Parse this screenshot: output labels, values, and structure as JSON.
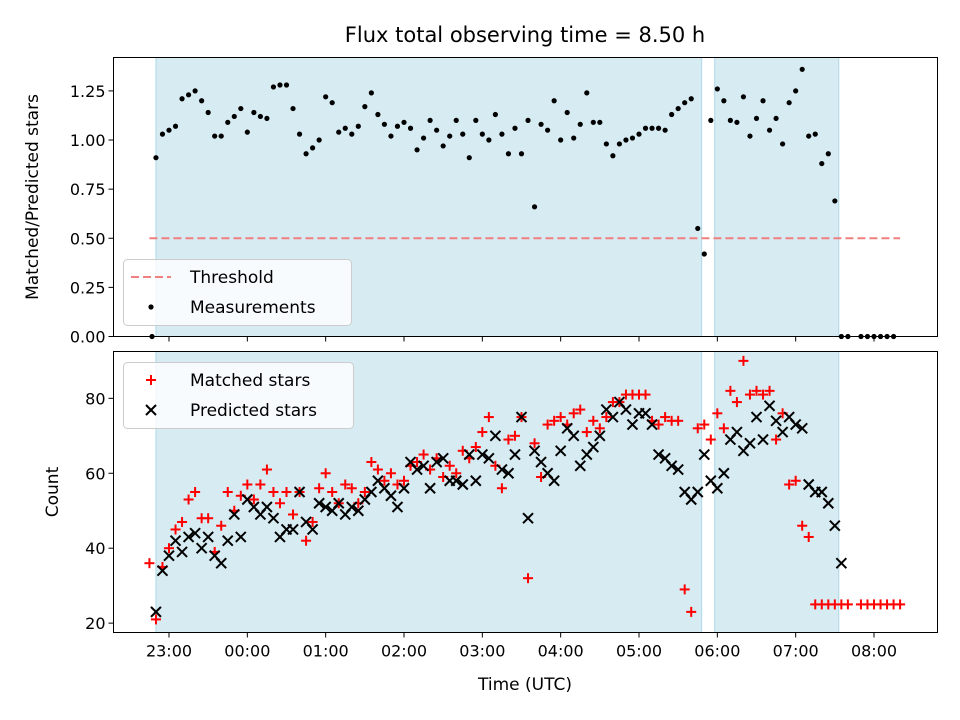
{
  "chart_data": [
    {
      "type": "scatter",
      "title": "Flux total observing time = 8.50 h",
      "xlabel": "",
      "ylabel": "Matched/Predicted stars",
      "ylim": [
        0,
        1.42
      ],
      "yticks": [
        "0.00",
        "0.25",
        "0.50",
        "0.75",
        "1.00",
        "1.25"
      ],
      "grid": false,
      "legend_position": "lower-left",
      "colors": {
        "threshold": "#f08080",
        "measurements": "#000000",
        "shade": "#add8e6"
      },
      "series": [
        {
          "name": "Threshold",
          "style": "dashed-line",
          "x": [
            "22:45",
            "08:20"
          ],
          "values": [
            0.5,
            0.5
          ]
        },
        {
          "name": "Measurements",
          "style": "dots",
          "x": [
            "22:47",
            "22:50",
            "22:55",
            "23:00",
            "23:05",
            "23:10",
            "23:15",
            "23:20",
            "23:25",
            "23:30",
            "23:35",
            "23:40",
            "23:45",
            "23:50",
            "23:55",
            "00:00",
            "00:05",
            "00:10",
            "00:15",
            "00:20",
            "00:25",
            "00:30",
            "00:35",
            "00:40",
            "00:45",
            "00:50",
            "00:55",
            "01:00",
            "01:05",
            "01:10",
            "01:15",
            "01:20",
            "01:25",
            "01:30",
            "01:35",
            "01:40",
            "01:45",
            "01:50",
            "01:55",
            "02:00",
            "02:05",
            "02:10",
            "02:15",
            "02:20",
            "02:25",
            "02:30",
            "02:35",
            "02:40",
            "02:45",
            "02:50",
            "02:55",
            "03:00",
            "03:05",
            "03:10",
            "03:15",
            "03:20",
            "03:25",
            "03:30",
            "03:35",
            "03:40",
            "03:45",
            "03:50",
            "03:55",
            "04:00",
            "04:05",
            "04:10",
            "04:15",
            "04:20",
            "04:25",
            "04:30",
            "04:35",
            "04:40",
            "04:45",
            "04:50",
            "04:55",
            "05:00",
            "05:05",
            "05:10",
            "05:15",
            "05:20",
            "05:25",
            "05:30",
            "05:35",
            "05:40",
            "05:45",
            "05:50",
            "05:55",
            "06:00",
            "06:05",
            "06:10",
            "06:15",
            "06:20",
            "06:25",
            "06:30",
            "06:35",
            "06:40",
            "06:45",
            "06:50",
            "06:55",
            "07:00",
            "07:05",
            "07:10",
            "07:15",
            "07:20",
            "07:25",
            "07:30",
            "07:35",
            "07:40",
            "07:50",
            "07:55",
            "08:00",
            "08:05",
            "08:10",
            "08:15"
          ],
          "values": [
            0.0,
            0.91,
            1.03,
            1.05,
            1.07,
            1.21,
            1.23,
            1.25,
            1.2,
            1.14,
            1.02,
            1.02,
            1.09,
            1.12,
            1.16,
            1.04,
            1.14,
            1.12,
            1.11,
            1.27,
            1.28,
            1.28,
            1.16,
            1.03,
            0.93,
            0.96,
            1.0,
            1.22,
            1.19,
            1.04,
            1.06,
            1.03,
            1.07,
            1.17,
            1.24,
            1.13,
            1.08,
            1.02,
            1.07,
            1.09,
            1.06,
            0.95,
            1.01,
            1.1,
            1.05,
            0.97,
            1.02,
            1.1,
            1.03,
            0.91,
            1.1,
            1.03,
            1.0,
            1.13,
            1.03,
            0.93,
            1.06,
            0.93,
            1.1,
            0.66,
            1.08,
            1.05,
            1.2,
            1.0,
            1.14,
            1.01,
            1.08,
            1.24,
            1.09,
            1.09,
            0.98,
            0.92,
            0.98,
            1.0,
            1.01,
            1.03,
            1.06,
            1.06,
            1.06,
            1.05,
            1.13,
            1.16,
            1.19,
            1.21,
            0.55,
            0.42,
            1.1,
            1.26,
            1.2,
            1.1,
            1.09,
            1.22,
            1.02,
            1.11,
            1.2,
            1.05,
            1.11,
            0.98,
            1.19,
            1.25,
            1.36,
            1.02,
            1.03,
            0.88,
            0.93,
            0.69,
            0.0,
            0.0,
            0.0,
            0.0,
            0.0,
            0.0,
            0.0,
            0.0
          ]
        }
      ],
      "shaded_x_ranges": [
        [
          "22:50",
          "05:48"
        ],
        [
          "05:58",
          "07:33"
        ]
      ]
    },
    {
      "type": "scatter",
      "title": "",
      "xlabel": "Time (UTC)",
      "ylabel": "Count",
      "ylim": [
        17.5,
        92.5
      ],
      "yticks": [
        "20",
        "40",
        "60",
        "80"
      ],
      "xticks": [
        "23:00",
        "00:00",
        "01:00",
        "02:00",
        "03:00",
        "04:00",
        "05:00",
        "06:00",
        "07:00",
        "08:00"
      ],
      "grid": false,
      "legend_position": "upper-left",
      "colors": {
        "matched": "#ff0000",
        "predicted": "#000000"
      },
      "series": [
        {
          "name": "Matched stars",
          "style": "plus",
          "x": [
            "22:45",
            "22:50",
            "22:55",
            "23:00",
            "23:05",
            "23:10",
            "23:15",
            "23:20",
            "23:25",
            "23:30",
            "23:35",
            "23:40",
            "23:45",
            "23:50",
            "23:55",
            "00:00",
            "00:05",
            "00:10",
            "00:15",
            "00:20",
            "00:25",
            "00:30",
            "00:35",
            "00:40",
            "00:45",
            "00:50",
            "00:55",
            "01:00",
            "01:05",
            "01:10",
            "01:15",
            "01:20",
            "01:25",
            "01:30",
            "01:35",
            "01:40",
            "01:45",
            "01:50",
            "01:55",
            "02:00",
            "02:05",
            "02:10",
            "02:15",
            "02:20",
            "02:25",
            "02:30",
            "02:35",
            "02:40",
            "02:45",
            "02:50",
            "02:55",
            "03:00",
            "03:05",
            "03:10",
            "03:15",
            "03:20",
            "03:25",
            "03:30",
            "03:35",
            "03:40",
            "03:45",
            "03:50",
            "03:55",
            "04:00",
            "04:05",
            "04:10",
            "04:15",
            "04:20",
            "04:25",
            "04:30",
            "04:35",
            "04:40",
            "04:45",
            "04:50",
            "04:55",
            "05:00",
            "05:05",
            "05:10",
            "05:15",
            "05:20",
            "05:25",
            "05:30",
            "05:35",
            "05:40",
            "05:45",
            "05:50",
            "05:55",
            "06:00",
            "06:05",
            "06:10",
            "06:15",
            "06:20",
            "06:25",
            "06:30",
            "06:35",
            "06:40",
            "06:45",
            "06:50",
            "06:55",
            "07:00",
            "07:05",
            "07:10",
            "07:15",
            "07:20",
            "07:25",
            "07:30",
            "07:35",
            "07:40",
            "07:50",
            "07:55",
            "08:00",
            "08:05",
            "08:10",
            "08:15",
            "08:20"
          ],
          "values": [
            36,
            21,
            35,
            40,
            45,
            47,
            53,
            55,
            48,
            48,
            39,
            46,
            55,
            50,
            54,
            57,
            53,
            57,
            61,
            55,
            52,
            55,
            49,
            55,
            42,
            47,
            56,
            60,
            55,
            52,
            57,
            56,
            52,
            55,
            63,
            61,
            58,
            60,
            57,
            58,
            62,
            63,
            65,
            61,
            64,
            59,
            62,
            60,
            66,
            64,
            67,
            71,
            75,
            62,
            56,
            69,
            70,
            75,
            32,
            68,
            59,
            73,
            74,
            75,
            73,
            76,
            77,
            71,
            74,
            72,
            75,
            79,
            79,
            81,
            81,
            81,
            81,
            74,
            73,
            75,
            74,
            74,
            29,
            23,
            72,
            73,
            69,
            76,
            72,
            82,
            79,
            90,
            81,
            82,
            81,
            82,
            69,
            76,
            57,
            58,
            46,
            43,
            25,
            25,
            25,
            25,
            25,
            25,
            25,
            25,
            25,
            25,
            25,
            25,
            25
          ]
        },
        {
          "name": "Predicted stars",
          "style": "x",
          "x": [
            "22:50",
            "22:55",
            "23:00",
            "23:05",
            "23:10",
            "23:15",
            "23:20",
            "23:25",
            "23:30",
            "23:35",
            "23:40",
            "23:45",
            "23:50",
            "23:55",
            "00:00",
            "00:05",
            "00:10",
            "00:15",
            "00:20",
            "00:25",
            "00:30",
            "00:35",
            "00:40",
            "00:45",
            "00:50",
            "00:55",
            "01:00",
            "01:05",
            "01:10",
            "01:15",
            "01:20",
            "01:25",
            "01:30",
            "01:35",
            "01:40",
            "01:45",
            "01:50",
            "01:55",
            "02:00",
            "02:05",
            "02:10",
            "02:15",
            "02:20",
            "02:25",
            "02:30",
            "02:35",
            "02:40",
            "02:45",
            "02:50",
            "02:55",
            "03:00",
            "03:05",
            "03:10",
            "03:15",
            "03:20",
            "03:25",
            "03:30",
            "03:35",
            "03:40",
            "03:45",
            "03:50",
            "03:55",
            "04:00",
            "04:05",
            "04:10",
            "04:15",
            "04:20",
            "04:25",
            "04:30",
            "04:35",
            "04:40",
            "04:45",
            "04:50",
            "04:55",
            "05:00",
            "05:05",
            "05:10",
            "05:15",
            "05:20",
            "05:25",
            "05:30",
            "05:35",
            "05:40",
            "05:45",
            "05:50",
            "05:55",
            "06:00",
            "06:05",
            "06:10",
            "06:15",
            "06:20",
            "06:25",
            "06:30",
            "06:35",
            "06:40",
            "06:45",
            "06:50",
            "06:55",
            "07:00",
            "07:05",
            "07:10",
            "07:15",
            "07:20",
            "07:25",
            "07:30",
            "07:35"
          ],
          "values": [
            23,
            34,
            38,
            42,
            39,
            43,
            44,
            40,
            43,
            38,
            36,
            42,
            49,
            43,
            53,
            51,
            49,
            51,
            48,
            43,
            45,
            45,
            55,
            47,
            45,
            52,
            51,
            50,
            52,
            49,
            51,
            50,
            53,
            55,
            58,
            56,
            54,
            51,
            56,
            63,
            61,
            62,
            56,
            63,
            64,
            58,
            58,
            57,
            65,
            58,
            65,
            64,
            70,
            61,
            60,
            65,
            75,
            48,
            66,
            63,
            60,
            58,
            66,
            72,
            70,
            62,
            65,
            67,
            70,
            77,
            75,
            79,
            77,
            73,
            76,
            76,
            73,
            65,
            64,
            62,
            61,
            55,
            53,
            55,
            65,
            58,
            56,
            60,
            69,
            71,
            66,
            68,
            75,
            69,
            78,
            74,
            71,
            75,
            73,
            72,
            57,
            55,
            55,
            52,
            46,
            36
          ]
        }
      ],
      "shaded_x_ranges": [
        [
          "22:50",
          "05:48"
        ],
        [
          "05:58",
          "07:33"
        ]
      ]
    }
  ]
}
